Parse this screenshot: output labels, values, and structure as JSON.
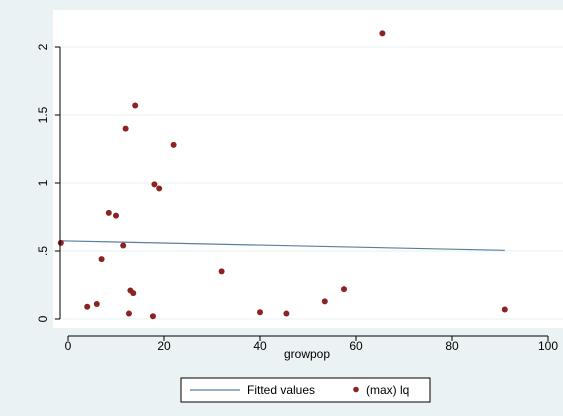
{
  "chart_data": {
    "type": "scatter",
    "title": "",
    "xlabel": "growpop",
    "ylabel": "",
    "xlim": [
      -2,
      100
    ],
    "ylim": [
      -0.03,
      2.2
    ],
    "x_ticks": [
      0,
      20,
      40,
      60,
      80,
      100
    ],
    "x_tick_labels": [
      "0",
      "20",
      "40",
      "60",
      "80",
      "100"
    ],
    "y_ticks": [
      0,
      0.5,
      1,
      1.5,
      2
    ],
    "y_tick_labels": [
      "0",
      ".5",
      "1",
      "1.5",
      "2"
    ],
    "grid": "horizontal",
    "legend_position": "bottom",
    "series": [
      {
        "name": "Fitted values",
        "kind": "line",
        "color": "#5b7e9e",
        "x": [
          -1.5,
          91
        ],
        "y": [
          0.575,
          0.505
        ]
      },
      {
        "name": "(max) lq",
        "kind": "scatter",
        "color": "#8c2323",
        "x": [
          -1.5,
          4,
          6,
          7,
          8.5,
          10,
          11.5,
          12,
          12.7,
          13,
          13.6,
          14,
          17.7,
          18,
          19,
          22,
          32,
          40,
          45.5,
          53.5,
          57.5,
          65.5,
          91
        ],
        "y": [
          0.56,
          0.09,
          0.11,
          0.44,
          0.78,
          0.76,
          0.54,
          1.4,
          0.04,
          0.21,
          0.19,
          1.57,
          0.02,
          0.99,
          0.96,
          1.28,
          0.35,
          0.05,
          0.04,
          0.13,
          0.22,
          2.1,
          0.07
        ]
      }
    ]
  },
  "colors": {
    "background": "#eaf2f3",
    "plot_area": "#ffffff",
    "gridline": "#eaf2f3",
    "axis": "#000000"
  }
}
